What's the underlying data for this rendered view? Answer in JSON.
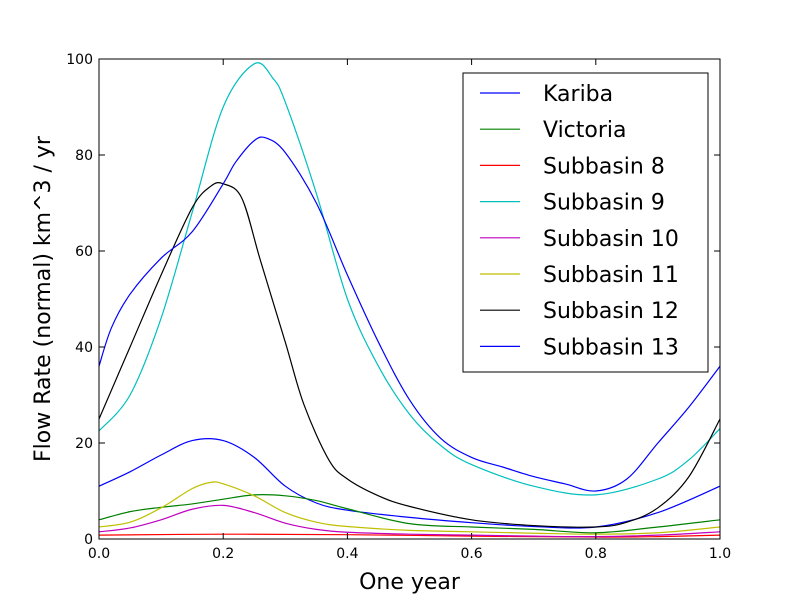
{
  "chart_data": {
    "type": "line",
    "title": "",
    "xlabel": "One year",
    "ylabel": "Flow Rate (normal) km^3 / yr",
    "xlim": [
      0,
      1
    ],
    "ylim": [
      0,
      100
    ],
    "xticks": [
      "0.0",
      "0.2",
      "0.4",
      "0.6",
      "0.8",
      "1.0"
    ],
    "yticks": [
      "0",
      "20",
      "40",
      "60",
      "80",
      "100"
    ],
    "grid": false,
    "legend_position": "top-right",
    "series": [
      {
        "name": "Kariba",
        "color": "#0000ff",
        "points": [
          [
            0,
            11
          ],
          [
            0.05,
            14
          ],
          [
            0.1,
            17.5
          ],
          [
            0.15,
            20.5
          ],
          [
            0.2,
            20.5
          ],
          [
            0.25,
            17
          ],
          [
            0.3,
            11
          ],
          [
            0.35,
            7.5
          ],
          [
            0.4,
            6
          ],
          [
            0.5,
            4.5
          ],
          [
            0.6,
            3.4
          ],
          [
            0.7,
            2.6
          ],
          [
            0.8,
            2.5
          ],
          [
            0.9,
            5.5
          ],
          [
            1.0,
            11
          ]
        ]
      },
      {
        "name": "Victoria",
        "color": "#008000",
        "points": [
          [
            0,
            4
          ],
          [
            0.05,
            5.7
          ],
          [
            0.1,
            6.6
          ],
          [
            0.15,
            7.3
          ],
          [
            0.2,
            8.3
          ],
          [
            0.25,
            9.2
          ],
          [
            0.3,
            9
          ],
          [
            0.35,
            8
          ],
          [
            0.4,
            6.3
          ],
          [
            0.5,
            3.2
          ],
          [
            0.6,
            2.5
          ],
          [
            0.7,
            2
          ],
          [
            0.8,
            1.3
          ],
          [
            0.9,
            2.5
          ],
          [
            1.0,
            4
          ]
        ]
      },
      {
        "name": "Subbasin 8",
        "color": "#ff0000",
        "points": [
          [
            0,
            0.8
          ],
          [
            0.2,
            1
          ],
          [
            0.4,
            0.9
          ],
          [
            0.6,
            0.6
          ],
          [
            0.8,
            0.4
          ],
          [
            0.9,
            0.5
          ],
          [
            1.0,
            0.8
          ]
        ]
      },
      {
        "name": "Subbasin 9",
        "color": "#00bfbf",
        "points": [
          [
            0,
            22.5
          ],
          [
            0.05,
            30
          ],
          [
            0.1,
            46
          ],
          [
            0.15,
            68
          ],
          [
            0.2,
            90
          ],
          [
            0.25,
            99
          ],
          [
            0.28,
            96
          ],
          [
            0.3,
            91
          ],
          [
            0.35,
            72
          ],
          [
            0.4,
            50
          ],
          [
            0.45,
            36
          ],
          [
            0.5,
            26
          ],
          [
            0.55,
            19.5
          ],
          [
            0.6,
            15.5
          ],
          [
            0.7,
            11
          ],
          [
            0.8,
            9.2
          ],
          [
            0.9,
            12.5
          ],
          [
            0.95,
            16.5
          ],
          [
            1.0,
            23
          ]
        ]
      },
      {
        "name": "Subbasin 10",
        "color": "#bf00bf",
        "points": [
          [
            0,
            1.5
          ],
          [
            0.05,
            2.3
          ],
          [
            0.1,
            4
          ],
          [
            0.15,
            6.2
          ],
          [
            0.2,
            7
          ],
          [
            0.25,
            5.5
          ],
          [
            0.3,
            3.3
          ],
          [
            0.35,
            2
          ],
          [
            0.4,
            1.4
          ],
          [
            0.5,
            1
          ],
          [
            0.6,
            0.8
          ],
          [
            0.7,
            0.6
          ],
          [
            0.8,
            0.5
          ],
          [
            0.9,
            0.8
          ],
          [
            1.0,
            1.5
          ]
        ]
      },
      {
        "name": "Subbasin 11",
        "color": "#bfbf00",
        "points": [
          [
            0,
            2.5
          ],
          [
            0.05,
            3.5
          ],
          [
            0.1,
            6.5
          ],
          [
            0.15,
            10.5
          ],
          [
            0.18,
            11.8
          ],
          [
            0.2,
            11.5
          ],
          [
            0.25,
            9
          ],
          [
            0.3,
            5.5
          ],
          [
            0.35,
            3.5
          ],
          [
            0.4,
            2.6
          ],
          [
            0.5,
            1.8
          ],
          [
            0.6,
            1.5
          ],
          [
            0.7,
            1.2
          ],
          [
            0.8,
            1
          ],
          [
            0.9,
            1.3
          ],
          [
            1.0,
            2.5
          ]
        ]
      },
      {
        "name": "Subbasin 12",
        "color": "#000000",
        "points": [
          [
            0,
            25
          ],
          [
            0.05,
            40
          ],
          [
            0.1,
            55
          ],
          [
            0.15,
            69
          ],
          [
            0.18,
            73.5
          ],
          [
            0.2,
            74
          ],
          [
            0.23,
            71
          ],
          [
            0.26,
            58
          ],
          [
            0.3,
            41
          ],
          [
            0.33,
            28
          ],
          [
            0.37,
            16.5
          ],
          [
            0.4,
            12.5
          ],
          [
            0.45,
            9
          ],
          [
            0.5,
            6.8
          ],
          [
            0.6,
            4
          ],
          [
            0.7,
            2.8
          ],
          [
            0.8,
            2.5
          ],
          [
            0.85,
            3.5
          ],
          [
            0.9,
            6.5
          ],
          [
            0.95,
            13
          ],
          [
            1.0,
            25
          ]
        ]
      },
      {
        "name": "Subbasin 13",
        "color": "#0000ff",
        "points": [
          [
            0,
            36
          ],
          [
            0.02,
            44
          ],
          [
            0.05,
            51
          ],
          [
            0.1,
            58.5
          ],
          [
            0.15,
            64
          ],
          [
            0.2,
            74
          ],
          [
            0.22,
            78.5
          ],
          [
            0.25,
            83
          ],
          [
            0.27,
            83.5
          ],
          [
            0.3,
            80.5
          ],
          [
            0.35,
            70
          ],
          [
            0.4,
            55
          ],
          [
            0.45,
            41
          ],
          [
            0.5,
            29
          ],
          [
            0.55,
            21
          ],
          [
            0.6,
            17
          ],
          [
            0.65,
            15
          ],
          [
            0.7,
            13
          ],
          [
            0.75,
            11.5
          ],
          [
            0.8,
            10
          ],
          [
            0.85,
            12.5
          ],
          [
            0.9,
            20
          ],
          [
            0.95,
            27.5
          ],
          [
            1.0,
            36
          ]
        ]
      }
    ]
  }
}
